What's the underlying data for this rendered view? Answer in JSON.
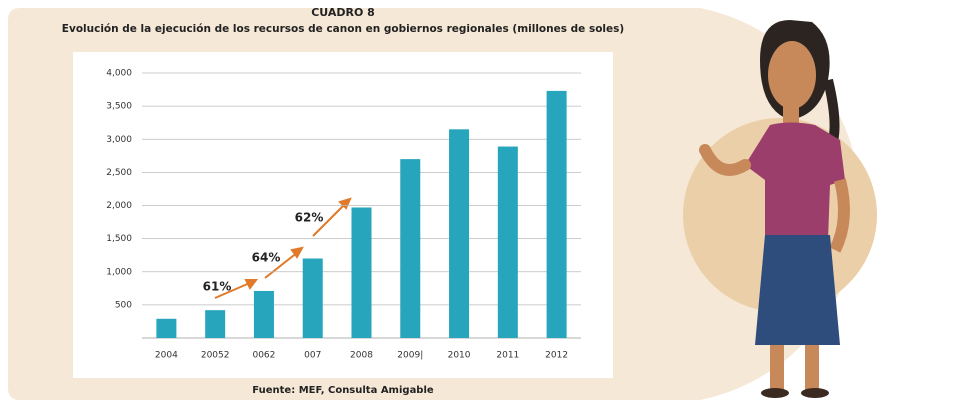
{
  "chart_data": {
    "type": "bar",
    "title": "CUADRO 8",
    "subtitle": "Evolución de la ejecución de los recursos de canon en gobiernos regionales (millones de soles)",
    "source": "Fuente: MEF, Consulta Amigable",
    "categories": [
      "2004",
      "20052",
      "0062",
      "007",
      "2008",
      "2009|",
      "2010",
      "2011",
      "2012"
    ],
    "values": [
      290,
      420,
      710,
      1200,
      1970,
      2700,
      3150,
      2890,
      3730
    ],
    "color": "#26a5bd",
    "ylim": [
      0,
      4000
    ],
    "yticks": [
      500,
      {
        "value": 1000,
        "label": "1,000"
      },
      {
        "value": 1500,
        "label": "1,500"
      },
      {
        "value": 2000,
        "label": "2,000"
      },
      {
        "value": 2500,
        "label": "2,500"
      },
      {
        "value": 3000,
        "label": "3,000"
      },
      {
        "value": 3500,
        "label": "3,500"
      },
      {
        "value": 4000,
        "label": "4,000"
      }
    ],
    "grid": true,
    "annotations": [
      "61%",
      "64%",
      "62%"
    ]
  }
}
